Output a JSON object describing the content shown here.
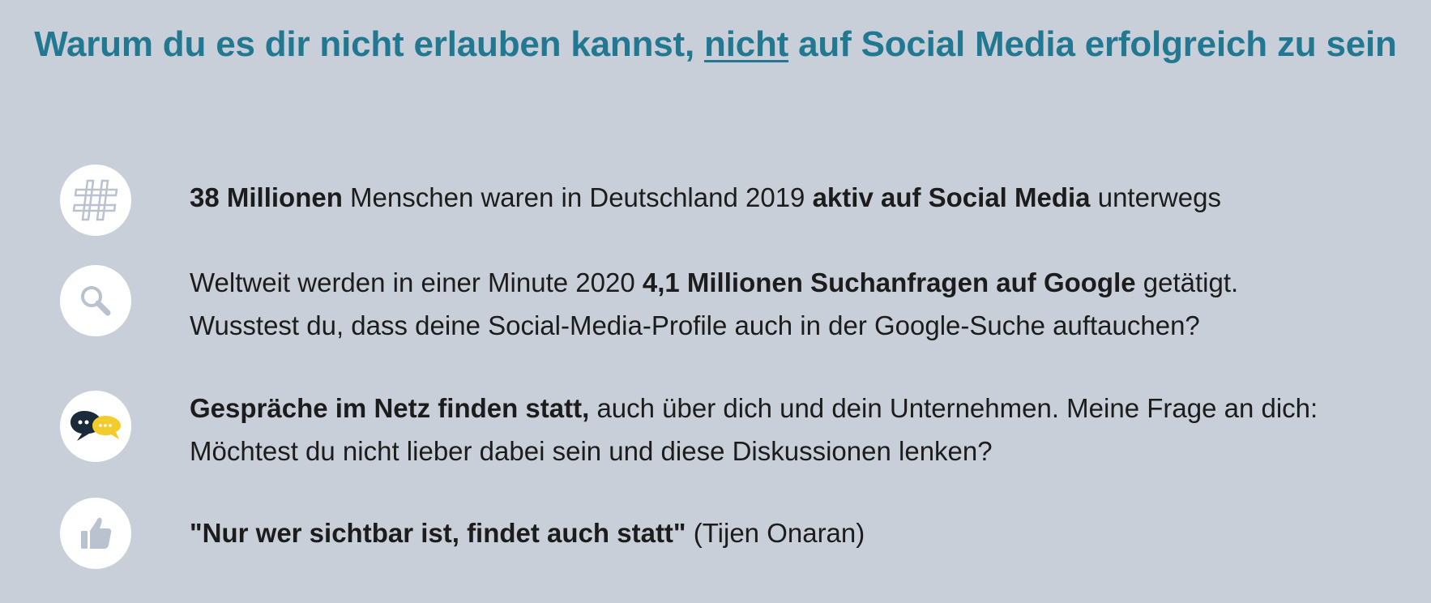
{
  "title": {
    "before": "Warum du es dir nicht erlauben kannst, ",
    "underlined": "nicht",
    "after": " auf Social Media erfolgreich zu sein"
  },
  "items": [
    {
      "icon": "hashtag-icon",
      "lines": [
        [
          {
            "text": "38 Millionen",
            "bold": true
          },
          {
            "text": " Menschen waren in Deutschland 2019 ",
            "bold": false
          },
          {
            "text": "aktiv auf Social Media",
            "bold": true
          },
          {
            "text": " unterwegs",
            "bold": false
          }
        ]
      ]
    },
    {
      "icon": "search-icon",
      "lines": [
        [
          {
            "text": "Weltweit werden in einer Minute 2020 ",
            "bold": false
          },
          {
            "text": "4,1 Millionen Suchanfragen auf Google",
            "bold": true
          },
          {
            "text": " getätigt.",
            "bold": false
          }
        ],
        [
          {
            "text": "Wusstest du, dass deine Social-Media-Profile auch in der Google-Suche auftauchen?",
            "bold": false
          }
        ]
      ]
    },
    {
      "icon": "chat-bubbles-icon",
      "lines": [
        [
          {
            "text": "Gespräche im Netz finden statt,",
            "bold": true
          },
          {
            "text": " auch über dich und dein Unternehmen. Meine Frage an dich:",
            "bold": false
          }
        ],
        [
          {
            "text": "Möchtest du nicht lieber dabei sein und diese Diskussionen lenken?",
            "bold": false
          }
        ]
      ]
    },
    {
      "icon": "thumbs-up-icon",
      "lines": [
        [
          {
            "text": "\"Nur wer sichtbar ist, findet auch statt\"",
            "bold": true
          },
          {
            "text": " (Tijen Onaran)",
            "bold": false
          }
        ]
      ]
    }
  ],
  "colors": {
    "background": "#c8cfd9",
    "title": "#227891",
    "text": "#1c1c1c",
    "icon_circle": "#ffffff",
    "icon_light": "#b9c2ce",
    "chat_dark": "#1b2a3a",
    "chat_yellow": "#f2cc2c"
  }
}
